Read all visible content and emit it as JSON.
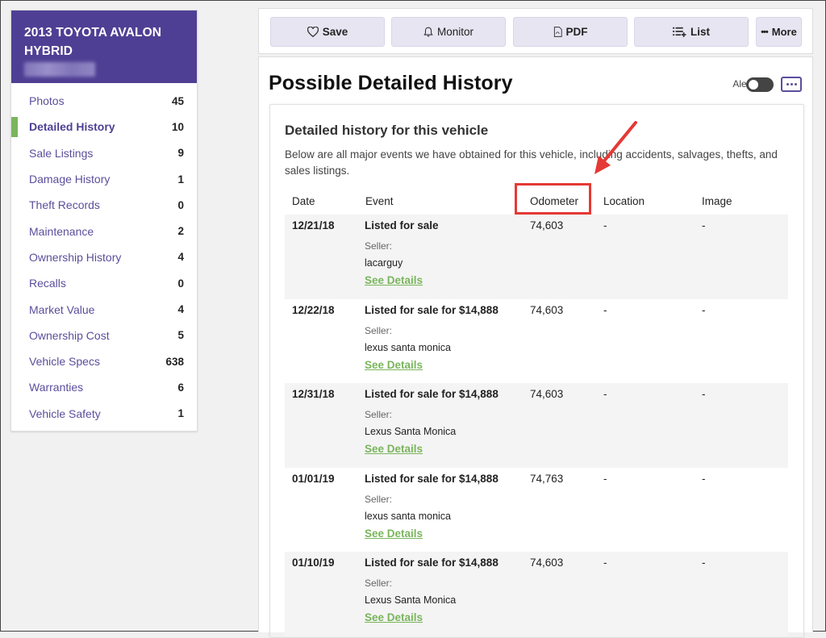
{
  "vehicle": {
    "title": "2013 TOYOTA AVALON HYBRID"
  },
  "sidebar": {
    "items": [
      {
        "label": "Photos",
        "count": "45"
      },
      {
        "label": "Detailed History",
        "count": "10"
      },
      {
        "label": "Sale Listings",
        "count": "9"
      },
      {
        "label": "Damage History",
        "count": "1"
      },
      {
        "label": "Theft Records",
        "count": "0"
      },
      {
        "label": "Maintenance",
        "count": "2"
      },
      {
        "label": "Ownership History",
        "count": "4"
      },
      {
        "label": "Recalls",
        "count": "0"
      },
      {
        "label": "Market Value",
        "count": "4"
      },
      {
        "label": "Ownership Cost",
        "count": "5"
      },
      {
        "label": "Vehicle Specs",
        "count": "638"
      },
      {
        "label": "Warranties",
        "count": "6"
      },
      {
        "label": "Vehicle Safety",
        "count": "1"
      }
    ],
    "active": "Detailed History"
  },
  "toolbar": {
    "save": "Save",
    "monitor": "Monitor",
    "pdf": "PDF",
    "list": "List",
    "more": "More"
  },
  "main": {
    "title": "Possible Detailed History",
    "alerts_label": "Alerts",
    "card": {
      "title": "Detailed history for this vehicle",
      "description": "Below are all major events we have obtained for this vehicle, including accidents, salvages, thefts, and sales listings."
    },
    "columns": [
      "Date",
      "Event",
      "Odometer",
      "Location",
      "Image"
    ],
    "seller_label": "Seller:",
    "details_label": "See Details",
    "rows": [
      {
        "date": "12/21/18",
        "event": "Listed for sale",
        "odometer": "74,603",
        "location": "-",
        "image": "-",
        "seller": "lacarguy"
      },
      {
        "date": "12/22/18",
        "event": "Listed for sale for $14,888",
        "odometer": "74,603",
        "location": "-",
        "image": "-",
        "seller": "lexus santa monica"
      },
      {
        "date": "12/31/18",
        "event": "Listed for sale for $14,888",
        "odometer": "74,603",
        "location": "-",
        "image": "-",
        "seller": "Lexus Santa Monica"
      },
      {
        "date": "01/01/19",
        "event": "Listed for sale for $14,888",
        "odometer": "74,763",
        "location": "-",
        "image": "-",
        "seller": "lexus santa monica"
      },
      {
        "date": "01/10/19",
        "event": "Listed for sale for $14,888",
        "odometer": "74,603",
        "location": "-",
        "image": "-",
        "seller": "Lexus Santa Monica"
      }
    ]
  },
  "colors": {
    "brand": "#4f3f94",
    "accent_green": "#7ab55c",
    "highlight_red": "#e53935"
  }
}
